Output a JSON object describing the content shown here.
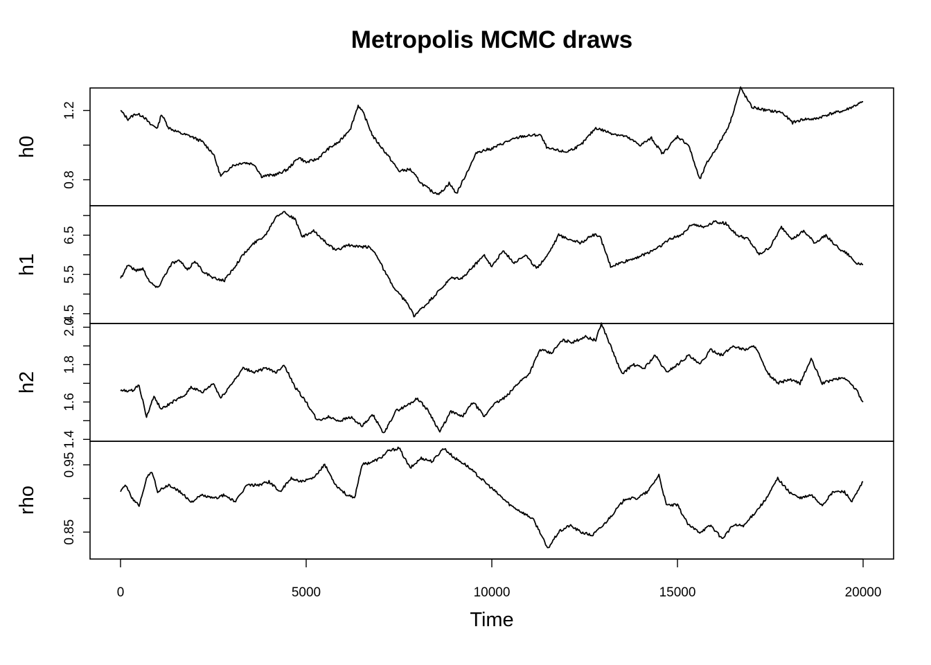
{
  "chart_data": {
    "type": "line",
    "title": "Metropolis MCMC draws",
    "xlabel": "Time",
    "xlim": [
      0,
      20000
    ],
    "xticks": [
      0,
      5000,
      10000,
      15000,
      20000
    ],
    "xtick_labels": [
      "0",
      "5000",
      "10000",
      "15000",
      "20000"
    ],
    "series": [
      {
        "name": "h0",
        "ylim": [
          0.65,
          1.33
        ],
        "yticks": [
          0.8,
          1.0,
          1.2
        ],
        "ytick_labels": [
          "0.8",
          "",
          "1.2"
        ],
        "points": [
          [
            0,
            1.2
          ],
          [
            200,
            1.15
          ],
          [
            400,
            1.18
          ],
          [
            600,
            1.17
          ],
          [
            800,
            1.12
          ],
          [
            1000,
            1.1
          ],
          [
            1100,
            1.18
          ],
          [
            1300,
            1.1
          ],
          [
            1600,
            1.07
          ],
          [
            1900,
            1.05
          ],
          [
            2200,
            1.02
          ],
          [
            2500,
            0.95
          ],
          [
            2700,
            0.82
          ],
          [
            3000,
            0.88
          ],
          [
            3300,
            0.9
          ],
          [
            3600,
            0.89
          ],
          [
            3800,
            0.82
          ],
          [
            4200,
            0.83
          ],
          [
            4500,
            0.86
          ],
          [
            4800,
            0.93
          ],
          [
            5000,
            0.9
          ],
          [
            5300,
            0.92
          ],
          [
            5600,
            0.98
          ],
          [
            5900,
            1.02
          ],
          [
            6200,
            1.1
          ],
          [
            6400,
            1.23
          ],
          [
            6550,
            1.18
          ],
          [
            6800,
            1.05
          ],
          [
            7200,
            0.94
          ],
          [
            7500,
            0.85
          ],
          [
            7800,
            0.86
          ],
          [
            8100,
            0.78
          ],
          [
            8400,
            0.73
          ],
          [
            8600,
            0.72
          ],
          [
            8850,
            0.78
          ],
          [
            9050,
            0.72
          ],
          [
            9300,
            0.83
          ],
          [
            9600,
            0.96
          ],
          [
            10000,
            0.98
          ],
          [
            10400,
            1.02
          ],
          [
            10800,
            1.05
          ],
          [
            11300,
            1.06
          ],
          [
            11500,
            0.98
          ],
          [
            12000,
            0.96
          ],
          [
            12400,
            1.0
          ],
          [
            12800,
            1.1
          ],
          [
            13200,
            1.07
          ],
          [
            13600,
            1.05
          ],
          [
            14000,
            1.0
          ],
          [
            14300,
            1.04
          ],
          [
            14600,
            0.95
          ],
          [
            15000,
            1.05
          ],
          [
            15300,
            1.0
          ],
          [
            15600,
            0.8
          ],
          [
            15800,
            0.9
          ],
          [
            16100,
            1.0
          ],
          [
            16400,
            1.12
          ],
          [
            16700,
            1.33
          ],
          [
            17000,
            1.22
          ],
          [
            17400,
            1.2
          ],
          [
            17800,
            1.19
          ],
          [
            18100,
            1.13
          ],
          [
            18400,
            1.15
          ],
          [
            18700,
            1.15
          ],
          [
            19100,
            1.18
          ],
          [
            19500,
            1.2
          ],
          [
            20000,
            1.25
          ]
        ]
      },
      {
        "name": "h1",
        "ylim": [
          4.25,
          7.25
        ],
        "yticks": [
          4.5,
          5.0,
          5.5,
          6.0,
          6.5,
          7.0
        ],
        "ytick_labels": [
          "4.5",
          "",
          "5.5",
          "",
          "6.5",
          ""
        ],
        "points": [
          [
            0,
            5.4
          ],
          [
            200,
            5.75
          ],
          [
            400,
            5.6
          ],
          [
            600,
            5.65
          ],
          [
            800,
            5.3
          ],
          [
            1000,
            5.15
          ],
          [
            1200,
            5.5
          ],
          [
            1400,
            5.8
          ],
          [
            1600,
            5.85
          ],
          [
            1800,
            5.6
          ],
          [
            2000,
            5.85
          ],
          [
            2200,
            5.6
          ],
          [
            2500,
            5.4
          ],
          [
            2800,
            5.35
          ],
          [
            3000,
            5.6
          ],
          [
            3300,
            6.0
          ],
          [
            3600,
            6.3
          ],
          [
            3900,
            6.5
          ],
          [
            4200,
            7.0
          ],
          [
            4400,
            7.1
          ],
          [
            4700,
            6.9
          ],
          [
            4900,
            6.45
          ],
          [
            5200,
            6.6
          ],
          [
            5500,
            6.35
          ],
          [
            5800,
            6.1
          ],
          [
            6100,
            6.25
          ],
          [
            6400,
            6.2
          ],
          [
            6700,
            6.2
          ],
          [
            6900,
            6.0
          ],
          [
            7100,
            5.6
          ],
          [
            7400,
            5.1
          ],
          [
            7700,
            4.8
          ],
          [
            7900,
            4.45
          ],
          [
            8200,
            4.7
          ],
          [
            8500,
            5.0
          ],
          [
            8900,
            5.4
          ],
          [
            9200,
            5.4
          ],
          [
            9500,
            5.7
          ],
          [
            9800,
            6.0
          ],
          [
            10000,
            5.7
          ],
          [
            10300,
            6.1
          ],
          [
            10600,
            5.8
          ],
          [
            10900,
            6.0
          ],
          [
            11200,
            5.65
          ],
          [
            11500,
            6.0
          ],
          [
            11800,
            6.5
          ],
          [
            12100,
            6.4
          ],
          [
            12400,
            6.3
          ],
          [
            12700,
            6.5
          ],
          [
            12900,
            6.5
          ],
          [
            13200,
            5.7
          ],
          [
            13500,
            5.8
          ],
          [
            13800,
            5.9
          ],
          [
            14100,
            6.0
          ],
          [
            14500,
            6.2
          ],
          [
            14800,
            6.4
          ],
          [
            15100,
            6.5
          ],
          [
            15400,
            6.8
          ],
          [
            15700,
            6.7
          ],
          [
            16000,
            6.85
          ],
          [
            16300,
            6.8
          ],
          [
            16600,
            6.5
          ],
          [
            16900,
            6.4
          ],
          [
            17200,
            6.0
          ],
          [
            17500,
            6.2
          ],
          [
            17800,
            6.7
          ],
          [
            18100,
            6.4
          ],
          [
            18400,
            6.6
          ],
          [
            18700,
            6.3
          ],
          [
            19000,
            6.5
          ],
          [
            19300,
            6.2
          ],
          [
            19600,
            6.0
          ],
          [
            19800,
            5.8
          ],
          [
            20000,
            5.75
          ]
        ]
      },
      {
        "name": "h2",
        "ylim": [
          1.39,
          2.02
        ],
        "yticks": [
          1.4,
          1.5,
          1.6,
          1.7,
          1.8,
          1.9,
          2.0
        ],
        "ytick_labels": [
          "1.4",
          "",
          "1.6",
          "",
          "1.8",
          "",
          "2.0"
        ],
        "points": [
          [
            0,
            1.66
          ],
          [
            300,
            1.66
          ],
          [
            500,
            1.69
          ],
          [
            700,
            1.52
          ],
          [
            900,
            1.63
          ],
          [
            1100,
            1.56
          ],
          [
            1400,
            1.6
          ],
          [
            1700,
            1.63
          ],
          [
            1900,
            1.68
          ],
          [
            2200,
            1.65
          ],
          [
            2500,
            1.7
          ],
          [
            2700,
            1.62
          ],
          [
            3000,
            1.7
          ],
          [
            3300,
            1.78
          ],
          [
            3600,
            1.76
          ],
          [
            3900,
            1.78
          ],
          [
            4200,
            1.76
          ],
          [
            4400,
            1.8
          ],
          [
            4700,
            1.68
          ],
          [
            5000,
            1.6
          ],
          [
            5300,
            1.5
          ],
          [
            5600,
            1.52
          ],
          [
            5900,
            1.5
          ],
          [
            6200,
            1.52
          ],
          [
            6500,
            1.47
          ],
          [
            6800,
            1.53
          ],
          [
            7100,
            1.43
          ],
          [
            7400,
            1.55
          ],
          [
            7700,
            1.58
          ],
          [
            8000,
            1.62
          ],
          [
            8300,
            1.55
          ],
          [
            8600,
            1.44
          ],
          [
            8900,
            1.55
          ],
          [
            9200,
            1.52
          ],
          [
            9500,
            1.6
          ],
          [
            9800,
            1.52
          ],
          [
            10000,
            1.58
          ],
          [
            10400,
            1.63
          ],
          [
            10700,
            1.7
          ],
          [
            11000,
            1.75
          ],
          [
            11300,
            1.88
          ],
          [
            11600,
            1.86
          ],
          [
            11900,
            1.93
          ],
          [
            12200,
            1.92
          ],
          [
            12500,
            1.95
          ],
          [
            12800,
            1.93
          ],
          [
            12950,
            2.02
          ],
          [
            13200,
            1.9
          ],
          [
            13500,
            1.75
          ],
          [
            13800,
            1.8
          ],
          [
            14100,
            1.78
          ],
          [
            14400,
            1.85
          ],
          [
            14700,
            1.76
          ],
          [
            15000,
            1.8
          ],
          [
            15300,
            1.85
          ],
          [
            15600,
            1.8
          ],
          [
            15900,
            1.88
          ],
          [
            16200,
            1.85
          ],
          [
            16500,
            1.9
          ],
          [
            16800,
            1.88
          ],
          [
            17100,
            1.9
          ],
          [
            17400,
            1.76
          ],
          [
            17700,
            1.7
          ],
          [
            18000,
            1.72
          ],
          [
            18300,
            1.7
          ],
          [
            18600,
            1.83
          ],
          [
            18900,
            1.7
          ],
          [
            19200,
            1.72
          ],
          [
            19500,
            1.73
          ],
          [
            19800,
            1.67
          ],
          [
            20000,
            1.6
          ]
        ]
      },
      {
        "name": "rho",
        "ylim": [
          0.81,
          0.985
        ],
        "yticks": [
          0.85,
          0.9,
          0.95
        ],
        "ytick_labels": [
          "0.85",
          "",
          "0.95"
        ],
        "points": [
          [
            0,
            0.91
          ],
          [
            150,
            0.92
          ],
          [
            300,
            0.9
          ],
          [
            500,
            0.89
          ],
          [
            700,
            0.93
          ],
          [
            850,
            0.94
          ],
          [
            1000,
            0.91
          ],
          [
            1300,
            0.92
          ],
          [
            1600,
            0.91
          ],
          [
            1900,
            0.895
          ],
          [
            2200,
            0.905
          ],
          [
            2500,
            0.9
          ],
          [
            2800,
            0.905
          ],
          [
            3100,
            0.895
          ],
          [
            3400,
            0.92
          ],
          [
            3700,
            0.92
          ],
          [
            4000,
            0.925
          ],
          [
            4300,
            0.91
          ],
          [
            4600,
            0.93
          ],
          [
            4900,
            0.925
          ],
          [
            5200,
            0.93
          ],
          [
            5500,
            0.95
          ],
          [
            5800,
            0.92
          ],
          [
            6100,
            0.905
          ],
          [
            6300,
            0.9
          ],
          [
            6500,
            0.95
          ],
          [
            6800,
            0.955
          ],
          [
            7000,
            0.96
          ],
          [
            7200,
            0.97
          ],
          [
            7500,
            0.975
          ],
          [
            7800,
            0.945
          ],
          [
            8100,
            0.96
          ],
          [
            8400,
            0.955
          ],
          [
            8700,
            0.975
          ],
          [
            9000,
            0.96
          ],
          [
            9300,
            0.95
          ],
          [
            9600,
            0.935
          ],
          [
            9900,
            0.92
          ],
          [
            10200,
            0.905
          ],
          [
            10500,
            0.89
          ],
          [
            10800,
            0.88
          ],
          [
            11100,
            0.87
          ],
          [
            11300,
            0.85
          ],
          [
            11500,
            0.825
          ],
          [
            11800,
            0.85
          ],
          [
            12100,
            0.86
          ],
          [
            12400,
            0.85
          ],
          [
            12700,
            0.845
          ],
          [
            13000,
            0.86
          ],
          [
            13300,
            0.88
          ],
          [
            13600,
            0.9
          ],
          [
            13900,
            0.9
          ],
          [
            14200,
            0.91
          ],
          [
            14500,
            0.935
          ],
          [
            14700,
            0.89
          ],
          [
            15000,
            0.89
          ],
          [
            15300,
            0.86
          ],
          [
            15600,
            0.85
          ],
          [
            15900,
            0.86
          ],
          [
            16200,
            0.84
          ],
          [
            16500,
            0.86
          ],
          [
            16800,
            0.86
          ],
          [
            17100,
            0.88
          ],
          [
            17400,
            0.9
          ],
          [
            17700,
            0.93
          ],
          [
            18000,
            0.91
          ],
          [
            18300,
            0.9
          ],
          [
            18600,
            0.905
          ],
          [
            18900,
            0.89
          ],
          [
            19200,
            0.91
          ],
          [
            19500,
            0.91
          ],
          [
            19700,
            0.895
          ],
          [
            20000,
            0.925
          ]
        ]
      }
    ]
  }
}
